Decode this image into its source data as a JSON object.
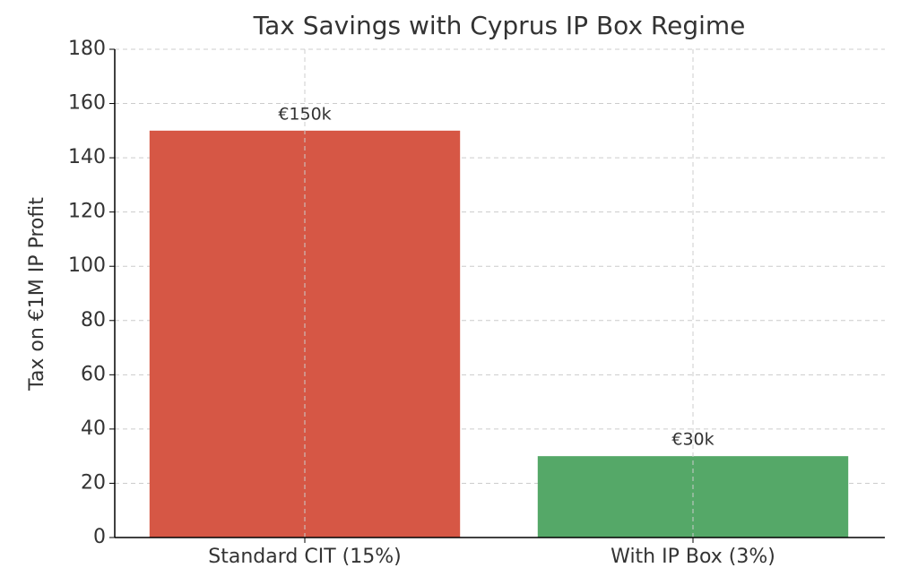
{
  "chart_data": {
    "type": "bar",
    "title": "Tax Savings with Cyprus IP Box Regime",
    "y_label": "Tax on €1M IP Profit",
    "categories": [
      "Standard CIT (15%)",
      "With IP Box (3%)"
    ],
    "values": [
      150,
      30
    ],
    "value_labels": [
      "€150k",
      "€30k"
    ],
    "colors": [
      "#d65745",
      "#55a868"
    ],
    "ylim": [
      0,
      180
    ],
    "yticks": [
      0,
      20,
      40,
      60,
      80,
      100,
      120,
      140,
      160,
      180
    ],
    "grid": true
  }
}
